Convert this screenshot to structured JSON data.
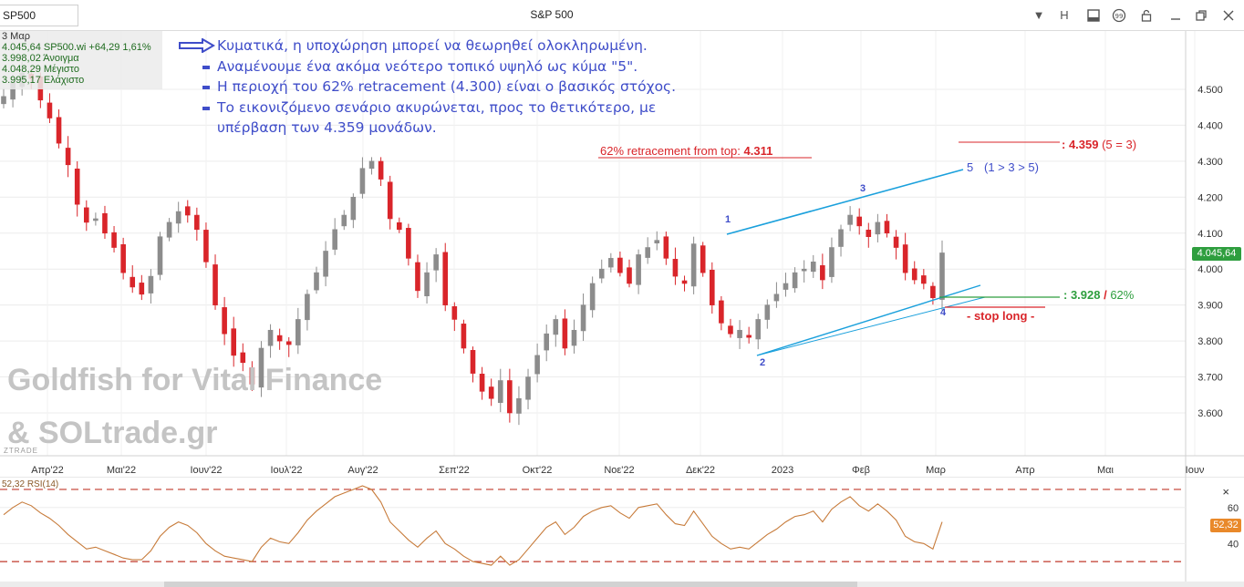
{
  "window": {
    "symbol": "SP500",
    "title": "S&P 500",
    "buttons": [
      "▼",
      "H"
    ]
  },
  "info": {
    "date": "3 Μαρ",
    "rows": [
      "4.045,64 SP500.wi +64,29 1,61%",
      "3.998,02 Άνοιγμα",
      "4.048,29 Μέγιστο",
      "3.995,17 Ελάχιστο"
    ]
  },
  "notes": [
    "Κυματικά, η υποχώρηση μπορεί να θεωρηθεί ολοκληρωμένη.",
    "Αναμένουμε ένα ακόμα νεότερο τοπικό υψηλό ως κύμα \"5\".",
    "Η περιοχή του 62% retracement  (4.300) είναι ο βασικός στόχος.",
    "Το εικονιζόμενο σενάριο ακυρώνεται, προς το θετικότερο, με",
    "υπέρβαση των 4.359 μονάδων."
  ],
  "watermark": {
    "line1": "Goldfish for Vital Finance",
    "line2": "& SOLtrade.gr",
    "brand": "ZTRADE"
  },
  "annotations": {
    "retracement_label": "62% retracement from top: ",
    "retracement_value": "4.311",
    "target_value": ": 4.359",
    "target_note": " (5 = 3)",
    "support_value": ": 3.928",
    "support_slash": " / ",
    "support_pct": "62%",
    "stop_label": "- stop long -",
    "wave_5_note": "(1 > 3 > 5)",
    "waves": [
      "1",
      "2",
      "3",
      "4",
      "5"
    ]
  },
  "colors": {
    "up_candle": "#8c8c8c",
    "down_candle": "#d9252a",
    "wave_line": "#1aa0dc",
    "notes_text": "#3f4dc9",
    "rsi_line": "#c77b3a",
    "last_price_tag": "#2e9e3e",
    "rsi_tag": "#e9892a"
  },
  "chart_data": [
    {
      "type": "candlestick",
      "title": "S&P 500",
      "x_ticks": [
        "Απρ'22",
        "Μαι'22",
        "Ιουν'22",
        "Ιουλ'22",
        "Αυγ'22",
        "Σεπ'22",
        "Οκτ'22",
        "Νοε'22",
        "Δεκ'22",
        "2023",
        "Φεβ",
        "Μαρ",
        "Απρ",
        "Μαι",
        "Ιουν"
      ],
      "y_ticks": [
        "3.600",
        "3.700",
        "3.800",
        "3.900",
        "4.000",
        "4.100",
        "4.200",
        "4.300",
        "4.400",
        "4.500"
      ],
      "y_tick_values": [
        3600,
        3700,
        3800,
        3900,
        4000,
        4100,
        4200,
        4300,
        4400,
        4500
      ],
      "ylim": [
        3510,
        4640
      ],
      "last_price": 4045.64,
      "last_price_label": "4.045,64",
      "series_close": [
        [
          0,
          4480
        ],
        [
          1,
          4520
        ],
        [
          2,
          4545
        ],
        [
          3,
          4530
        ],
        [
          4,
          4470
        ],
        [
          5,
          4420
        ],
        [
          6,
          4350
        ],
        [
          7,
          4290
        ],
        [
          8,
          4180
        ],
        [
          9,
          4130
        ],
        [
          10,
          4140
        ],
        [
          11,
          4100
        ],
        [
          12,
          4060
        ],
        [
          13,
          3990
        ],
        [
          14,
          3950
        ],
        [
          15,
          3930
        ],
        [
          16,
          3980
        ],
        [
          17,
          4090
        ],
        [
          18,
          4130
        ],
        [
          19,
          4160
        ],
        [
          20,
          4150
        ],
        [
          21,
          4110
        ],
        [
          22,
          4020
        ],
        [
          23,
          3900
        ],
        [
          24,
          3820
        ],
        [
          25,
          3760
        ],
        [
          26,
          3740
        ],
        [
          27,
          3680
        ],
        [
          28,
          3780
        ],
        [
          29,
          3830
        ],
        [
          30,
          3800
        ],
        [
          31,
          3790
        ],
        [
          32,
          3860
        ],
        [
          33,
          3930
        ],
        [
          34,
          3990
        ],
        [
          35,
          4050
        ],
        [
          36,
          4110
        ],
        [
          37,
          4150
        ],
        [
          38,
          4200
        ],
        [
          39,
          4280
        ],
        [
          40,
          4300
        ],
        [
          41,
          4250
        ],
        [
          42,
          4140
        ],
        [
          43,
          4110
        ],
        [
          44,
          4030
        ],
        [
          45,
          3940
        ],
        [
          46,
          3990
        ],
        [
          47,
          4040
        ],
        [
          48,
          3900
        ],
        [
          49,
          3860
        ],
        [
          50,
          3780
        ],
        [
          51,
          3710
        ],
        [
          52,
          3660
        ],
        [
          53,
          3640
        ],
        [
          54,
          3690
        ],
        [
          55,
          3600
        ],
        [
          56,
          3640
        ],
        [
          57,
          3700
        ],
        [
          58,
          3760
        ],
        [
          59,
          3820
        ],
        [
          60,
          3860
        ],
        [
          61,
          3780
        ],
        [
          62,
          3830
        ],
        [
          63,
          3900
        ],
        [
          64,
          3960
        ],
        [
          65,
          4000
        ],
        [
          66,
          4030
        ],
        [
          67,
          3990
        ],
        [
          68,
          3960
        ],
        [
          69,
          4040
        ],
        [
          70,
          4060
        ],
        [
          71,
          4080
        ],
        [
          72,
          4030
        ],
        [
          73,
          3980
        ],
        [
          74,
          3960
        ],
        [
          75,
          4070
        ],
        [
          76,
          3990
        ],
        [
          77,
          3900
        ],
        [
          78,
          3850
        ],
        [
          79,
          3820
        ],
        [
          80,
          3830
        ],
        [
          81,
          3810
        ],
        [
          82,
          3860
        ],
        [
          83,
          3900
        ],
        [
          84,
          3930
        ],
        [
          85,
          3960
        ],
        [
          86,
          3990
        ],
        [
          87,
          4000
        ],
        [
          88,
          4020
        ],
        [
          89,
          3970
        ],
        [
          90,
          4060
        ],
        [
          91,
          4110
        ],
        [
          92,
          4150
        ],
        [
          93,
          4120
        ],
        [
          94,
          4090
        ],
        [
          95,
          4130
        ],
        [
          96,
          4100
        ],
        [
          97,
          4060
        ],
        [
          98,
          3990
        ],
        [
          99,
          3970
        ],
        [
          100,
          3960
        ],
        [
          101,
          3920
        ],
        [
          102,
          4045
        ]
      ]
    },
    {
      "type": "line",
      "title": "RSI(14)",
      "current_label": "52,32",
      "y_ticks": [
        "40",
        "60"
      ],
      "y_tick_values": [
        40,
        60
      ],
      "ylim": [
        24,
        72
      ],
      "overbought": 70,
      "oversold": 30,
      "values": [
        56,
        60,
        63,
        61,
        57,
        54,
        50,
        45,
        41,
        37,
        38,
        36,
        34,
        32,
        31,
        31,
        36,
        44,
        49,
        52,
        50,
        46,
        40,
        36,
        33,
        32,
        31,
        30,
        38,
        43,
        41,
        40,
        46,
        53,
        58,
        62,
        66,
        68,
        70,
        72,
        70,
        63,
        52,
        47,
        42,
        38,
        43,
        47,
        40,
        37,
        33,
        30,
        29,
        28,
        33,
        28,
        31,
        37,
        43,
        49,
        52,
        45,
        49,
        55,
        58,
        60,
        61,
        57,
        54,
        60,
        61,
        62,
        56,
        51,
        50,
        58,
        51,
        44,
        40,
        37,
        38,
        37,
        41,
        45,
        48,
        52,
        55,
        56,
        58,
        52,
        59,
        63,
        66,
        61,
        58,
        62,
        58,
        53,
        44,
        41,
        40,
        37,
        52
      ]
    }
  ]
}
